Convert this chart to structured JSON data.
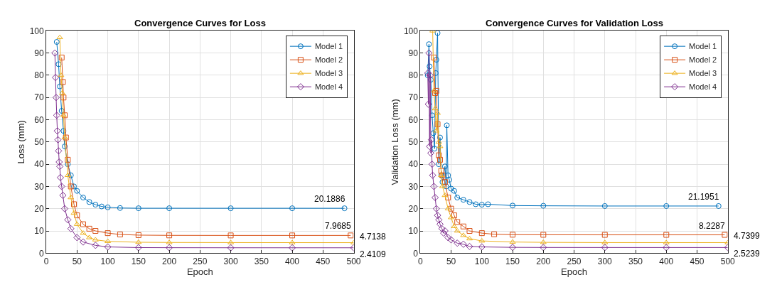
{
  "chart_data": [
    {
      "type": "line",
      "title": "Convergence Curves for Loss",
      "xlabel": "Epoch",
      "ylabel": "Loss (mm)",
      "xlim": [
        0,
        500
      ],
      "ylim": [
        0,
        100
      ],
      "xticks": [
        0,
        50,
        100,
        150,
        200,
        250,
        300,
        350,
        400,
        450,
        500
      ],
      "yticks": [
        0,
        10,
        20,
        30,
        40,
        50,
        60,
        70,
        80,
        90,
        100
      ],
      "grid": true,
      "legend": "top right",
      "line_style": "solid",
      "series": [
        {
          "name": "Model 1",
          "color": "#0072bd",
          "marker": "circle",
          "x": [
            17,
            20,
            22,
            25,
            28,
            30,
            35,
            40,
            45,
            50,
            60,
            70,
            80,
            90,
            100,
            120,
            150,
            200,
            300,
            400,
            485
          ],
          "values": [
            95,
            85,
            75,
            64,
            55,
            48,
            40,
            35,
            30,
            28,
            25,
            23,
            21.8,
            21,
            20.6,
            20.3,
            20.2,
            20.2,
            20.19,
            20.19,
            20.1886
          ]
        },
        {
          "name": "Model 2",
          "color": "#d95319",
          "marker": "square",
          "x": [
            25,
            27,
            28,
            30,
            32,
            35,
            40,
            45,
            50,
            60,
            70,
            80,
            100,
            120,
            150,
            200,
            300,
            400,
            495
          ],
          "values": [
            88,
            77,
            70,
            62,
            52,
            42,
            30,
            22,
            17,
            13,
            11,
            10,
            9,
            8.4,
            8.1,
            8,
            7.97,
            7.97,
            7.9685
          ]
        },
        {
          "name": "Model 3",
          "color": "#edb120",
          "marker": "triangle",
          "x": [
            22,
            24,
            26,
            28,
            30,
            35,
            40,
            45,
            50,
            60,
            70,
            80,
            100,
            150,
            200,
            300,
            400,
            500
          ],
          "values": [
            97,
            80,
            72,
            62,
            52,
            35,
            25,
            18,
            13,
            9,
            7,
            6,
            5.3,
            4.9,
            4.8,
            4.75,
            4.72,
            4.7138
          ]
        },
        {
          "name": "Model 4",
          "color": "#7e2f8e",
          "marker": "diamond",
          "x": [
            14,
            15,
            16,
            17,
            18,
            19,
            20,
            21,
            22,
            23,
            25,
            27,
            30,
            35,
            40,
            50,
            60,
            80,
            100,
            150,
            200,
            300,
            400,
            500
          ],
          "values": [
            90,
            79,
            70,
            62,
            55,
            51,
            46,
            41,
            39,
            34,
            30,
            26,
            20,
            15,
            11,
            7,
            5,
            3.5,
            2.8,
            2.5,
            2.45,
            2.42,
            2.41,
            2.4109
          ]
        }
      ],
      "annotations": [
        {
          "text": "20.1886",
          "x": 485,
          "y": 20.1886
        },
        {
          "text": "7.9685",
          "x": 495,
          "y": 7.9685
        },
        {
          "text": "4.7138",
          "x": 500,
          "y": 4.7138
        },
        {
          "text": "2.4109",
          "x": 500,
          "y": 2.4109
        }
      ]
    },
    {
      "type": "line",
      "title": "Convergence Curves for Validation Loss",
      "xlabel": "Epoch",
      "ylabel": "Validation Loss (mm)",
      "xlim": [
        0,
        500
      ],
      "ylim": [
        0,
        100
      ],
      "xticks": [
        0,
        50,
        100,
        150,
        200,
        250,
        300,
        350,
        400,
        450,
        500
      ],
      "yticks": [
        0,
        10,
        20,
        30,
        40,
        50,
        60,
        70,
        80,
        90,
        100
      ],
      "grid": true,
      "legend": "top right",
      "line_style": "solid",
      "series": [
        {
          "name": "Model 1",
          "color": "#0072bd",
          "marker": "circle",
          "x": [
            12,
            14,
            15,
            17,
            19,
            21,
            23,
            25,
            26,
            28,
            30,
            32,
            34,
            36,
            40,
            42,
            43,
            45,
            47,
            50,
            55,
            60,
            70,
            80,
            90,
            100,
            110,
            150,
            200,
            300,
            400,
            485
          ],
          "values": [
            80,
            94,
            84,
            78,
            62,
            54,
            47,
            81,
            87,
            99,
            40,
            52,
            35,
            32,
            39,
            30,
            57.5,
            35,
            33,
            29,
            28,
            25,
            24,
            23,
            22,
            21.8,
            22,
            21.4,
            21.3,
            21.2,
            21.2,
            21.1951
          ]
        },
        {
          "name": "Model 2",
          "color": "#d95319",
          "marker": "square",
          "x": [
            22,
            24,
            26,
            28,
            30,
            32,
            34,
            36,
            40,
            45,
            50,
            55,
            60,
            70,
            80,
            100,
            120,
            150,
            200,
            300,
            400,
            495
          ],
          "values": [
            88,
            72,
            73,
            58,
            44,
            42,
            37,
            35,
            32,
            25,
            20,
            17,
            14,
            12,
            10,
            9,
            8.5,
            8.3,
            8.25,
            8.23,
            8.23,
            8.2287
          ]
        },
        {
          "name": "Model 3",
          "color": "#edb120",
          "marker": "triangle",
          "x": [
            20,
            22,
            24,
            26,
            28,
            30,
            32,
            34,
            36,
            40,
            45,
            50,
            55,
            60,
            70,
            80,
            100,
            150,
            200,
            300,
            400,
            500
          ],
          "values": [
            100,
            73,
            65,
            55,
            63,
            50,
            48,
            35,
            30,
            26,
            20,
            16,
            12,
            10,
            8,
            6.5,
            5.5,
            5,
            4.85,
            4.75,
            4.74,
            4.7399
          ]
        },
        {
          "name": "Model 4",
          "color": "#7e2f8e",
          "marker": "diamond",
          "x": [
            12,
            13,
            14,
            15,
            16,
            17,
            18,
            19,
            20,
            22,
            24,
            26,
            28,
            30,
            32,
            35,
            38,
            40,
            45,
            50,
            60,
            70,
            80,
            100,
            150,
            200,
            300,
            400,
            500
          ],
          "values": [
            81,
            67,
            90,
            48,
            80,
            45,
            51,
            40,
            35,
            30,
            25,
            20,
            17,
            15,
            13,
            11,
            9,
            10,
            7,
            6,
            4.5,
            4,
            3,
            2.8,
            2.6,
            2.55,
            2.53,
            2.52,
            2.5239
          ]
        }
      ],
      "annotations": [
        {
          "text": "21.1951",
          "x": 485,
          "y": 21.1951
        },
        {
          "text": "8.2287",
          "x": 495,
          "y": 8.2287
        },
        {
          "text": "4.7399",
          "x": 500,
          "y": 4.7399
        },
        {
          "text": "2.5239",
          "x": 500,
          "y": 2.5239
        }
      ]
    }
  ]
}
